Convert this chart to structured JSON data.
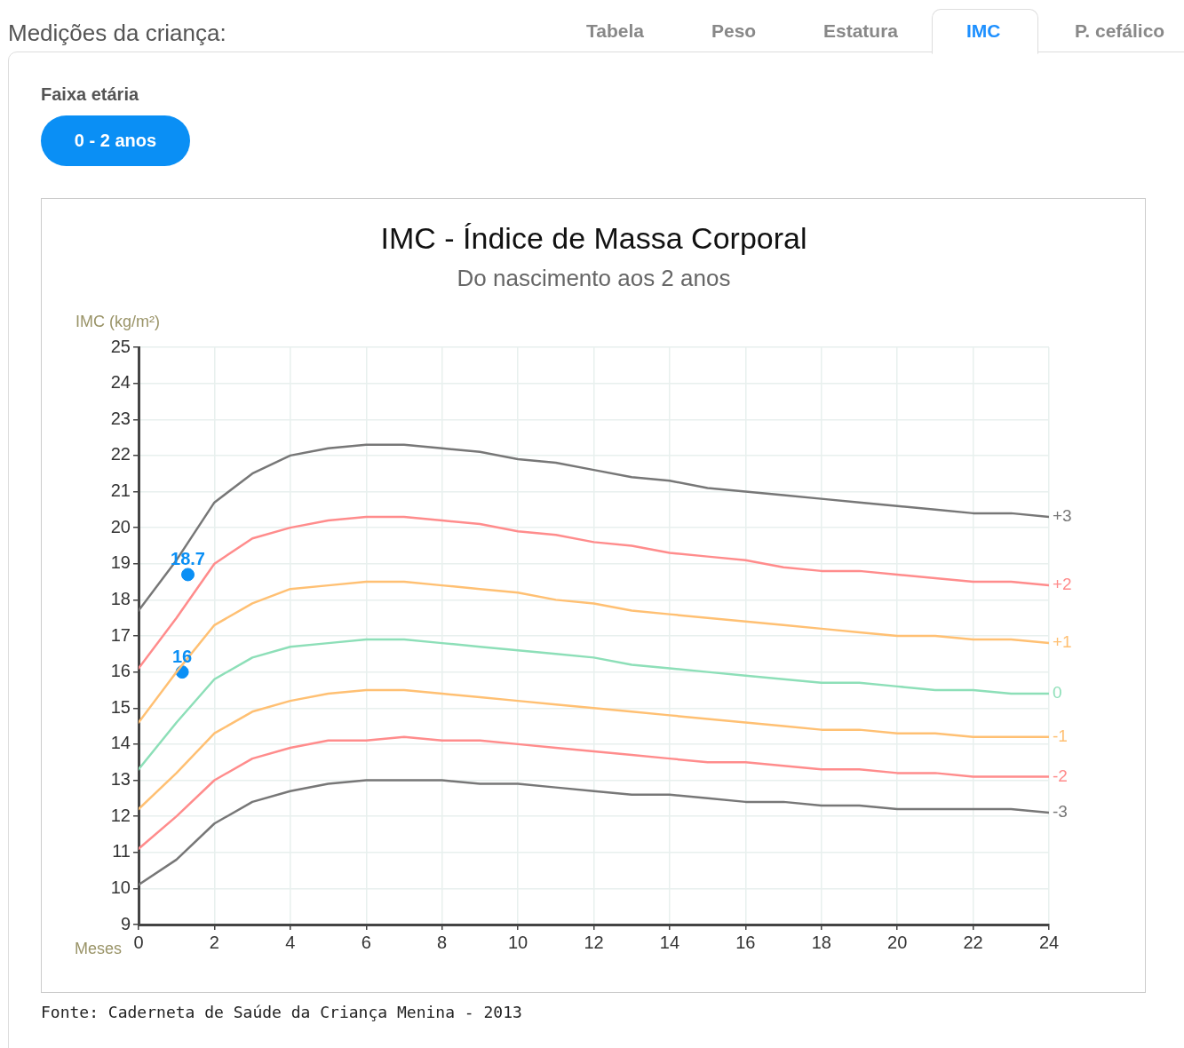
{
  "chart_data": {
    "type": "line",
    "title": "IMC - Índice de Massa Corporal",
    "subtitle": "Do nascimento aos 2 anos",
    "xlabel": "Meses",
    "ylabel": "IMC (kg/m²)",
    "annotations": [
      "Medições da criança:",
      "Tabela",
      "Peso",
      "Estatura",
      "IMC",
      "P. cefálico",
      "Faixa etária",
      "0 - 2 anos",
      "Fonte: Caderneta de Saúde da Criança Menina - 2013"
    ],
    "x": [
      0,
      1,
      2,
      3,
      4,
      5,
      6,
      7,
      8,
      9,
      10,
      11,
      12,
      13,
      14,
      15,
      16,
      17,
      18,
      19,
      20,
      21,
      22,
      23,
      24
    ],
    "xlim": [
      0,
      24
    ],
    "xticks": [
      0,
      2,
      4,
      6,
      8,
      10,
      12,
      14,
      16,
      18,
      20,
      22,
      24
    ],
    "ylim": [
      9,
      25
    ],
    "yticks": [
      9,
      10,
      11,
      12,
      13,
      14,
      15,
      16,
      17,
      18,
      19,
      20,
      21,
      22,
      23,
      24,
      25
    ],
    "grid": true,
    "legend": false,
    "series": [
      {
        "name": "+3",
        "color": "#777777",
        "values": [
          17.7,
          19.1,
          20.7,
          21.5,
          22.0,
          22.2,
          22.3,
          22.3,
          22.2,
          22.1,
          21.9,
          21.8,
          21.6,
          21.4,
          21.3,
          21.1,
          21.0,
          20.9,
          20.8,
          20.7,
          20.6,
          20.5,
          20.4,
          20.4,
          20.3
        ]
      },
      {
        "name": "+2",
        "color": "#ff8c8c",
        "values": [
          16.1,
          17.5,
          19.0,
          19.7,
          20.0,
          20.2,
          20.3,
          20.3,
          20.2,
          20.1,
          19.9,
          19.8,
          19.6,
          19.5,
          19.3,
          19.2,
          19.1,
          18.9,
          18.8,
          18.8,
          18.7,
          18.6,
          18.5,
          18.5,
          18.4
        ]
      },
      {
        "name": "+1",
        "color": "#ffc073",
        "values": [
          14.6,
          16.0,
          17.3,
          17.9,
          18.3,
          18.4,
          18.5,
          18.5,
          18.4,
          18.3,
          18.2,
          18.0,
          17.9,
          17.7,
          17.6,
          17.5,
          17.4,
          17.3,
          17.2,
          17.1,
          17.0,
          17.0,
          16.9,
          16.9,
          16.8
        ]
      },
      {
        "name": "0",
        "color": "#8ddfb8",
        "values": [
          13.3,
          14.6,
          15.8,
          16.4,
          16.7,
          16.8,
          16.9,
          16.9,
          16.8,
          16.7,
          16.6,
          16.5,
          16.4,
          16.2,
          16.1,
          16.0,
          15.9,
          15.8,
          15.7,
          15.7,
          15.6,
          15.5,
          15.5,
          15.4,
          15.4
        ]
      },
      {
        "name": "-1",
        "color": "#ffc073",
        "values": [
          12.2,
          13.2,
          14.3,
          14.9,
          15.2,
          15.4,
          15.5,
          15.5,
          15.4,
          15.3,
          15.2,
          15.1,
          15.0,
          14.9,
          14.8,
          14.7,
          14.6,
          14.5,
          14.4,
          14.4,
          14.3,
          14.3,
          14.2,
          14.2,
          14.2
        ]
      },
      {
        "name": "-2",
        "color": "#ff8c8c",
        "values": [
          11.1,
          12.0,
          13.0,
          13.6,
          13.9,
          14.1,
          14.1,
          14.2,
          14.1,
          14.1,
          14.0,
          13.9,
          13.8,
          13.7,
          13.6,
          13.5,
          13.5,
          13.4,
          13.3,
          13.3,
          13.2,
          13.2,
          13.1,
          13.1,
          13.1
        ]
      },
      {
        "name": "-3",
        "color": "#777777",
        "values": [
          10.1,
          10.8,
          11.8,
          12.4,
          12.7,
          12.9,
          13.0,
          13.0,
          13.0,
          12.9,
          12.9,
          12.8,
          12.7,
          12.6,
          12.6,
          12.5,
          12.4,
          12.4,
          12.3,
          12.3,
          12.2,
          12.2,
          12.2,
          12.2,
          12.1
        ]
      },
      {
        "type": "scatter",
        "color": "#0a8ff5",
        "marker": "circle",
        "x": [
          1.3,
          1.15
        ],
        "values": [
          18.7,
          16
        ],
        "value_labels": [
          "18.7",
          "16"
        ]
      }
    ]
  }
}
